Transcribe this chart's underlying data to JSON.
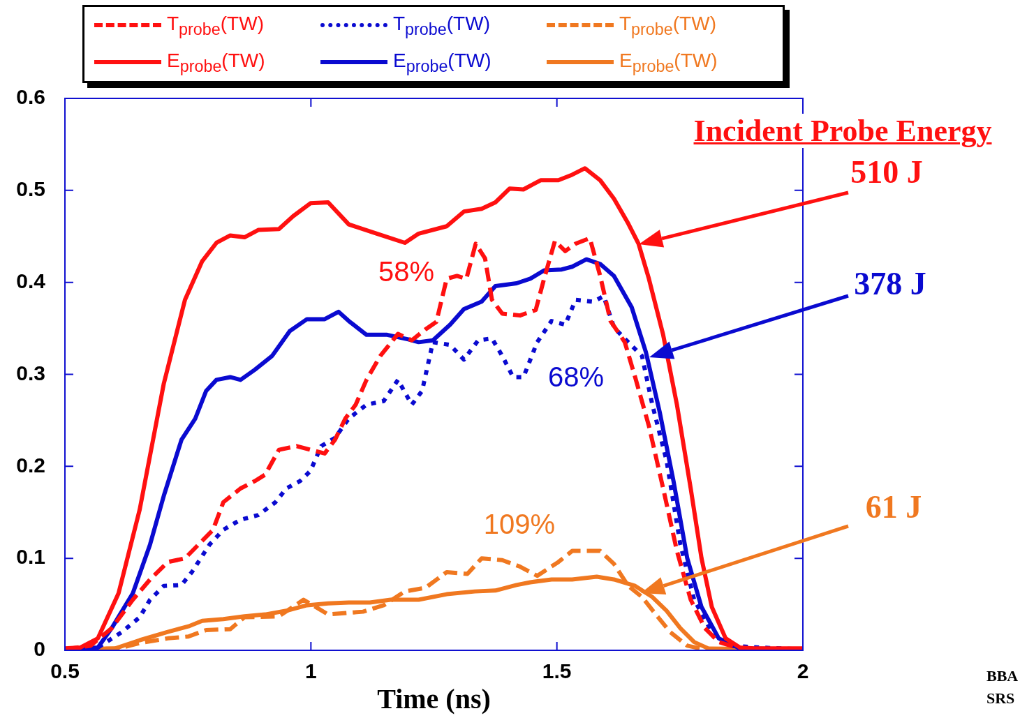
{
  "chart_data": {
    "type": "line",
    "xlabel": "Time (ns)",
    "xlim": [
      0.5,
      2
    ],
    "xticks": [
      0.5,
      1,
      1.5,
      2
    ],
    "ylim": [
      0,
      0.6
    ],
    "yticks": [
      0,
      0.1,
      0.2,
      0.3,
      0.4,
      0.5,
      0.6
    ],
    "grid": false,
    "legend": "top",
    "marker": "none",
    "annotations": [
      "Incident Probe Energy",
      "510 J",
      "378 J",
      "61 J",
      "58%",
      "68%",
      "109%",
      "BBA",
      "SRS"
    ],
    "series": [
      {
        "name": "T$_{probe}$(TW)",
        "color": "#ff1010",
        "line_style": "dashed",
        "x": [
          0.5,
          0.552,
          0.595,
          0.638,
          0.673,
          0.709,
          0.744,
          0.779,
          0.801,
          0.822,
          0.857,
          0.886,
          0.907,
          0.935,
          0.971,
          0.999,
          1.028,
          1.049,
          1.07,
          1.091,
          1.113,
          1.141,
          1.177,
          1.205,
          1.233,
          1.255,
          1.276,
          1.297,
          1.316,
          1.335,
          1.354,
          1.368,
          1.389,
          1.425,
          1.457,
          1.474,
          1.496,
          1.517,
          1.538,
          1.567,
          1.588,
          1.609,
          1.638,
          1.659,
          1.687,
          1.716,
          1.744,
          1.772,
          1.801,
          1.829,
          1.872,
          2
        ],
        "values": [
          0.001,
          0.005,
          0.024,
          0.055,
          0.077,
          0.096,
          0.1,
          0.119,
          0.131,
          0.161,
          0.176,
          0.184,
          0.191,
          0.218,
          0.222,
          0.218,
          0.214,
          0.229,
          0.252,
          0.267,
          0.294,
          0.32,
          0.344,
          0.337,
          0.349,
          0.357,
          0.404,
          0.407,
          0.404,
          0.442,
          0.426,
          0.381,
          0.366,
          0.364,
          0.37,
          0.404,
          0.445,
          0.434,
          0.442,
          0.448,
          0.407,
          0.358,
          0.335,
          0.297,
          0.244,
          0.176,
          0.108,
          0.055,
          0.024,
          0.009,
          0.002,
          0.001
        ]
      },
      {
        "name": "E$_{probe}$(TW)",
        "color": "#ff1010",
        "line_style": "solid",
        "x": [
          0.5,
          0.531,
          0.567,
          0.609,
          0.652,
          0.701,
          0.744,
          0.779,
          0.808,
          0.836,
          0.865,
          0.893,
          0.935,
          0.964,
          0.999,
          1.035,
          1.077,
          1.134,
          1.191,
          1.219,
          1.276,
          1.311,
          1.347,
          1.375,
          1.404,
          1.432,
          1.467,
          1.503,
          1.531,
          1.557,
          1.588,
          1.616,
          1.645,
          1.666,
          1.687,
          1.716,
          1.744,
          1.772,
          1.794,
          1.815,
          1.843,
          1.872,
          1.9,
          2
        ],
        "values": [
          0.002,
          0.003,
          0.013,
          0.062,
          0.153,
          0.29,
          0.381,
          0.423,
          0.443,
          0.451,
          0.449,
          0.457,
          0.458,
          0.472,
          0.486,
          0.487,
          0.463,
          0.453,
          0.443,
          0.453,
          0.461,
          0.477,
          0.48,
          0.487,
          0.502,
          0.501,
          0.511,
          0.511,
          0.517,
          0.524,
          0.511,
          0.491,
          0.464,
          0.442,
          0.404,
          0.343,
          0.267,
          0.176,
          0.1,
          0.047,
          0.013,
          0.003,
          0.002,
          0.002
        ]
      },
      {
        "name": "T$_{probe}$(TW)",
        "color": "#0a0ad0",
        "line_style": "dotted",
        "x": [
          0.5,
          0.567,
          0.616,
          0.652,
          0.673,
          0.701,
          0.737,
          0.758,
          0.794,
          0.822,
          0.857,
          0.893,
          0.928,
          0.95,
          0.978,
          0.999,
          1.021,
          1.049,
          1.077,
          1.113,
          1.148,
          1.177,
          1.205,
          1.226,
          1.248,
          1.283,
          1.311,
          1.34,
          1.368,
          1.389,
          1.411,
          1.432,
          1.46,
          1.489,
          1.517,
          1.538,
          1.574,
          1.595,
          1.616,
          1.645,
          1.673,
          1.694,
          1.723,
          1.751,
          1.779,
          1.815,
          1.85,
          1.914,
          2
        ],
        "values": [
          0.001,
          0.003,
          0.02,
          0.036,
          0.055,
          0.07,
          0.071,
          0.085,
          0.115,
          0.131,
          0.142,
          0.147,
          0.161,
          0.176,
          0.184,
          0.195,
          0.222,
          0.231,
          0.252,
          0.267,
          0.271,
          0.294,
          0.267,
          0.282,
          0.335,
          0.332,
          0.316,
          0.337,
          0.339,
          0.32,
          0.297,
          0.297,
          0.335,
          0.358,
          0.354,
          0.381,
          0.379,
          0.385,
          0.351,
          0.335,
          0.32,
          0.267,
          0.206,
          0.115,
          0.055,
          0.02,
          0.005,
          0.003,
          0.001
        ]
      },
      {
        "name": "E$_{probe}$(TW)",
        "color": "#0a0ad0",
        "line_style": "solid",
        "x": [
          0.5,
          0.567,
          0.595,
          0.638,
          0.673,
          0.701,
          0.737,
          0.765,
          0.787,
          0.808,
          0.836,
          0.857,
          0.886,
          0.921,
          0.957,
          0.992,
          1.028,
          1.056,
          1.077,
          1.113,
          1.155,
          1.198,
          1.219,
          1.248,
          1.283,
          1.311,
          1.347,
          1.375,
          1.418,
          1.446,
          1.474,
          1.51,
          1.531,
          1.56,
          1.588,
          1.616,
          1.652,
          1.681,
          1.709,
          1.737,
          1.765,
          1.794,
          1.829,
          1.872,
          2
        ],
        "values": [
          0.001,
          0.003,
          0.024,
          0.062,
          0.115,
          0.168,
          0.229,
          0.252,
          0.282,
          0.294,
          0.297,
          0.294,
          0.305,
          0.32,
          0.347,
          0.36,
          0.36,
          0.368,
          0.358,
          0.343,
          0.343,
          0.338,
          0.335,
          0.337,
          0.354,
          0.371,
          0.379,
          0.396,
          0.399,
          0.404,
          0.413,
          0.414,
          0.417,
          0.425,
          0.42,
          0.407,
          0.373,
          0.324,
          0.259,
          0.184,
          0.1,
          0.047,
          0.013,
          0.002,
          0.001
        ]
      },
      {
        "name": "T$_{probe}$(TW)",
        "color": "#f07820",
        "line_style": "dashed",
        "x": [
          0.5,
          0.609,
          0.652,
          0.709,
          0.751,
          0.787,
          0.836,
          0.865,
          0.935,
          0.985,
          1.035,
          1.106,
          1.148,
          1.191,
          1.233,
          1.276,
          1.318,
          1.347,
          1.389,
          1.425,
          1.46,
          1.503,
          1.531,
          1.588,
          1.616,
          1.645,
          1.673,
          1.701,
          1.73,
          1.765,
          1.801,
          2
        ],
        "values": [
          0.001,
          0.002,
          0.008,
          0.013,
          0.015,
          0.022,
          0.023,
          0.036,
          0.037,
          0.055,
          0.039,
          0.042,
          0.049,
          0.064,
          0.068,
          0.085,
          0.083,
          0.1,
          0.098,
          0.091,
          0.081,
          0.096,
          0.108,
          0.108,
          0.094,
          0.07,
          0.058,
          0.039,
          0.02,
          0.005,
          0.001,
          0.001
        ]
      },
      {
        "name": "E$_{probe}$(TW)",
        "color": "#f07820",
        "line_style": "solid",
        "x": [
          0.5,
          0.602,
          0.652,
          0.709,
          0.751,
          0.779,
          0.822,
          0.865,
          0.907,
          0.95,
          0.992,
          1.035,
          1.077,
          1.12,
          1.162,
          1.219,
          1.276,
          1.333,
          1.375,
          1.418,
          1.446,
          1.489,
          1.531,
          1.581,
          1.616,
          1.659,
          1.694,
          1.723,
          1.751,
          1.779,
          1.808,
          2
        ],
        "values": [
          0.001,
          0.002,
          0.011,
          0.02,
          0.026,
          0.032,
          0.034,
          0.037,
          0.039,
          0.043,
          0.049,
          0.051,
          0.052,
          0.052,
          0.055,
          0.055,
          0.061,
          0.064,
          0.065,
          0.071,
          0.074,
          0.077,
          0.077,
          0.08,
          0.077,
          0.07,
          0.058,
          0.043,
          0.024,
          0.009,
          0.002,
          0.001
        ]
      }
    ]
  }
}
